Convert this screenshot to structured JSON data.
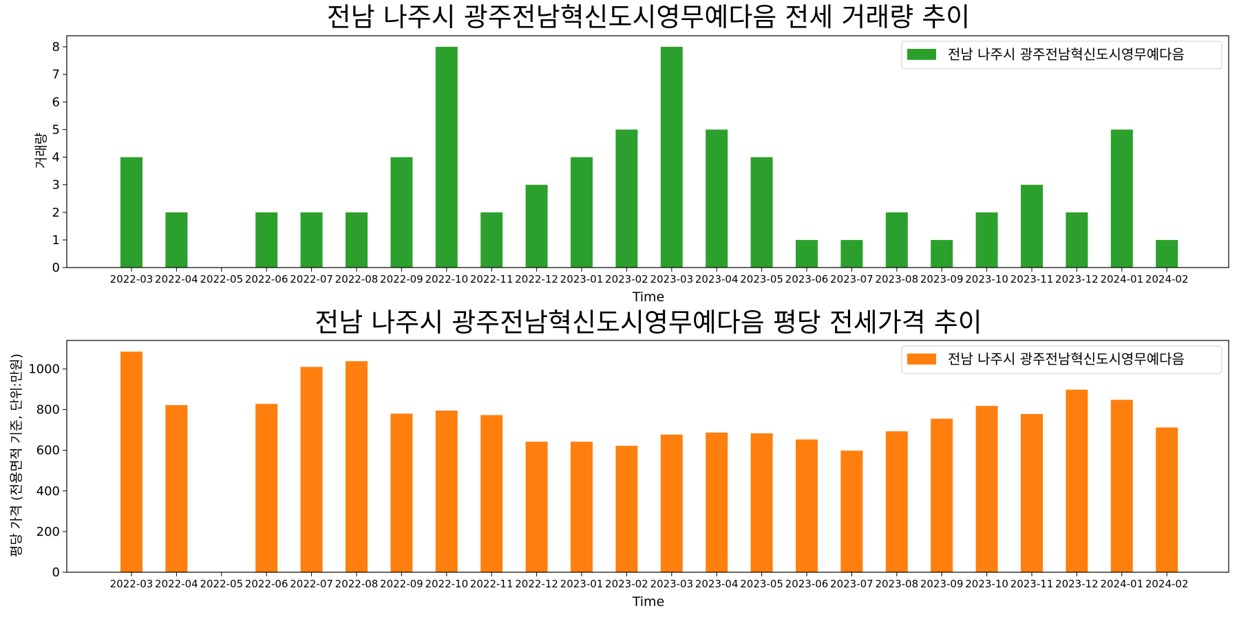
{
  "chart_data": [
    {
      "type": "bar",
      "title": "전남 나주시 광주전남혁신도시영무예다음 전세 거래량 추이",
      "xlabel": "Time",
      "ylabel": "거래량",
      "ylim": [
        0,
        8.4
      ],
      "yticks": [
        0,
        1,
        2,
        3,
        4,
        5,
        6,
        7,
        8
      ],
      "legend": {
        "label": "전남 나주시 광주전남혁신도시영무예다음",
        "placement": "top-right"
      },
      "color": "#2ca02c",
      "categories": [
        "2022-03",
        "2022-04",
        "2022-05",
        "2022-06",
        "2022-07",
        "2022-08",
        "2022-09",
        "2022-10",
        "2022-11",
        "2022-12",
        "2023-01",
        "2023-02",
        "2023-03",
        "2023-04",
        "2023-05",
        "2023-06",
        "2023-07",
        "2023-08",
        "2023-09",
        "2023-10",
        "2023-11",
        "2023-12",
        "2024-01",
        "2024-02"
      ],
      "values": [
        4,
        2,
        0,
        2,
        2,
        2,
        4,
        8,
        2,
        3,
        4,
        5,
        8,
        5,
        4,
        1,
        1,
        2,
        1,
        2,
        3,
        2,
        5,
        1
      ]
    },
    {
      "type": "bar",
      "title": "전남 나주시 광주전남혁신도시영무예다음 평당 전세가격 추이",
      "xlabel": "Time",
      "ylabel": "평당 가격 (전용면적 기준, 단위:만원)",
      "ylim": [
        0,
        1140
      ],
      "yticks": [
        0,
        200,
        400,
        600,
        800,
        1000
      ],
      "legend": {
        "label": "전남 나주시 광주전남혁신도시영무예다음",
        "placement": "top-right"
      },
      "color": "#ff7f0e",
      "categories": [
        "2022-03",
        "2022-04",
        "2022-05",
        "2022-06",
        "2022-07",
        "2022-08",
        "2022-09",
        "2022-10",
        "2022-11",
        "2022-12",
        "2023-01",
        "2023-02",
        "2023-03",
        "2023-04",
        "2023-05",
        "2023-06",
        "2023-07",
        "2023-08",
        "2023-09",
        "2023-10",
        "2023-11",
        "2023-12",
        "2024-01",
        "2024-02"
      ],
      "values": [
        1085,
        822,
        null,
        828,
        1010,
        1038,
        780,
        795,
        773,
        642,
        642,
        622,
        677,
        687,
        683,
        653,
        598,
        693,
        755,
        818,
        778,
        898,
        848,
        712
      ]
    }
  ]
}
